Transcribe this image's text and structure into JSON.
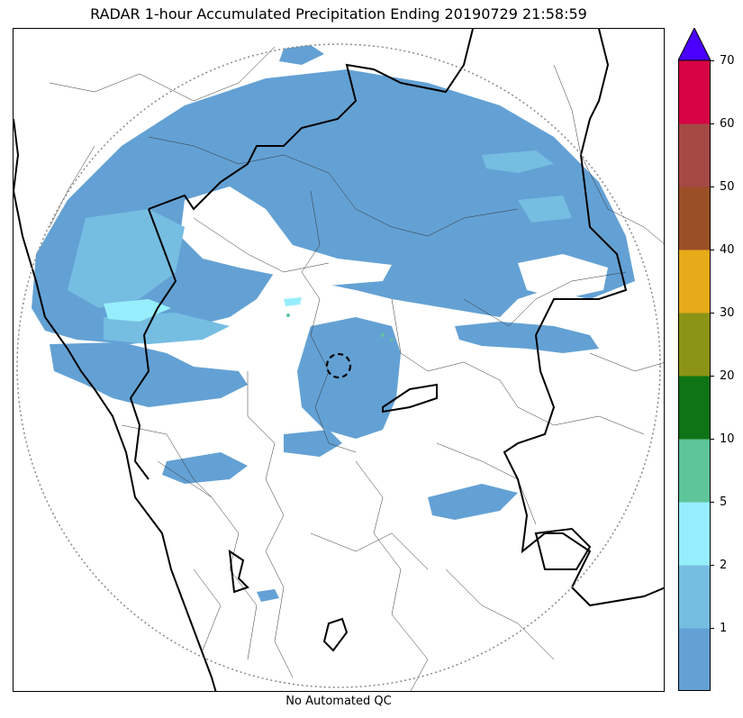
{
  "title": "RADAR 1-hour Accumulated Precipitation Ending 20190729 21:58:59",
  "caption": "No Automated QC",
  "legend": {
    "colors": [
      "#63a1d4",
      "#76bde2",
      "#96eefc",
      "#5ec49a",
      "#0f7416",
      "#8b9414",
      "#e7aa18",
      "#9b4f27",
      "#a54945",
      "#d60345"
    ],
    "extend_color": "#4a00ff",
    "ticks": [
      "1",
      "2",
      "5",
      "10",
      "20",
      "30",
      "40",
      "50",
      "60",
      "70"
    ]
  },
  "icons": {
    "radar_site": "radar-site-marker",
    "range_ring": "radar-range-ring"
  }
}
